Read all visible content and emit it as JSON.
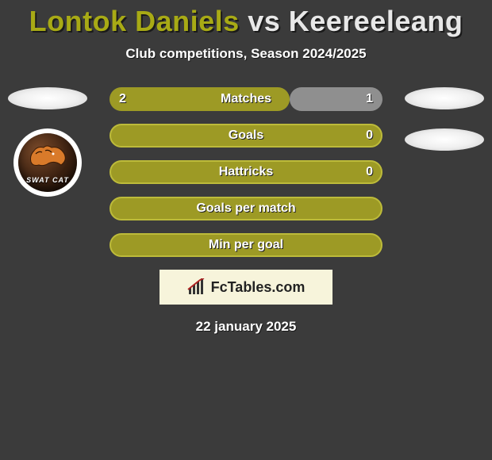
{
  "title": {
    "full": "Lontok Daniels vs Keereeleang",
    "player1": "Lontok Daniels",
    "player2": "Keereeleang",
    "color1": "#a8aa15",
    "color2": "#e8e8e8",
    "vs_color": "#e8e8e8"
  },
  "subtitle": "Club competitions, Season 2024/2025",
  "colors": {
    "background": "#3b3b3b",
    "olive": "#9d9a25",
    "olive_border": "#bdbb3a",
    "gray": "#8f8f8f",
    "text": "#ffffff",
    "logo_card_bg": "#f7f4db"
  },
  "badge": {
    "label": "SWAT CAT"
  },
  "stats": {
    "rows": [
      {
        "label": "Matches",
        "left_val": "2",
        "right_val": "1",
        "left_pct": 66,
        "right_pct": 34,
        "show_right_overlay": true,
        "outlined": false
      },
      {
        "label": "Goals",
        "left_val": "",
        "right_val": "0",
        "left_pct": 100,
        "right_pct": 0,
        "show_right_overlay": false,
        "outlined": true
      },
      {
        "label": "Hattricks",
        "left_val": "",
        "right_val": "0",
        "left_pct": 100,
        "right_pct": 0,
        "show_right_overlay": false,
        "outlined": true
      },
      {
        "label": "Goals per match",
        "left_val": "",
        "right_val": "",
        "left_pct": 100,
        "right_pct": 0,
        "show_right_overlay": false,
        "outlined": true
      },
      {
        "label": "Min per goal",
        "left_val": "",
        "right_val": "",
        "left_pct": 100,
        "right_pct": 0,
        "show_right_overlay": false,
        "outlined": true
      }
    ]
  },
  "logo": {
    "text": "FcTables.com"
  },
  "date": "22 january 2025"
}
